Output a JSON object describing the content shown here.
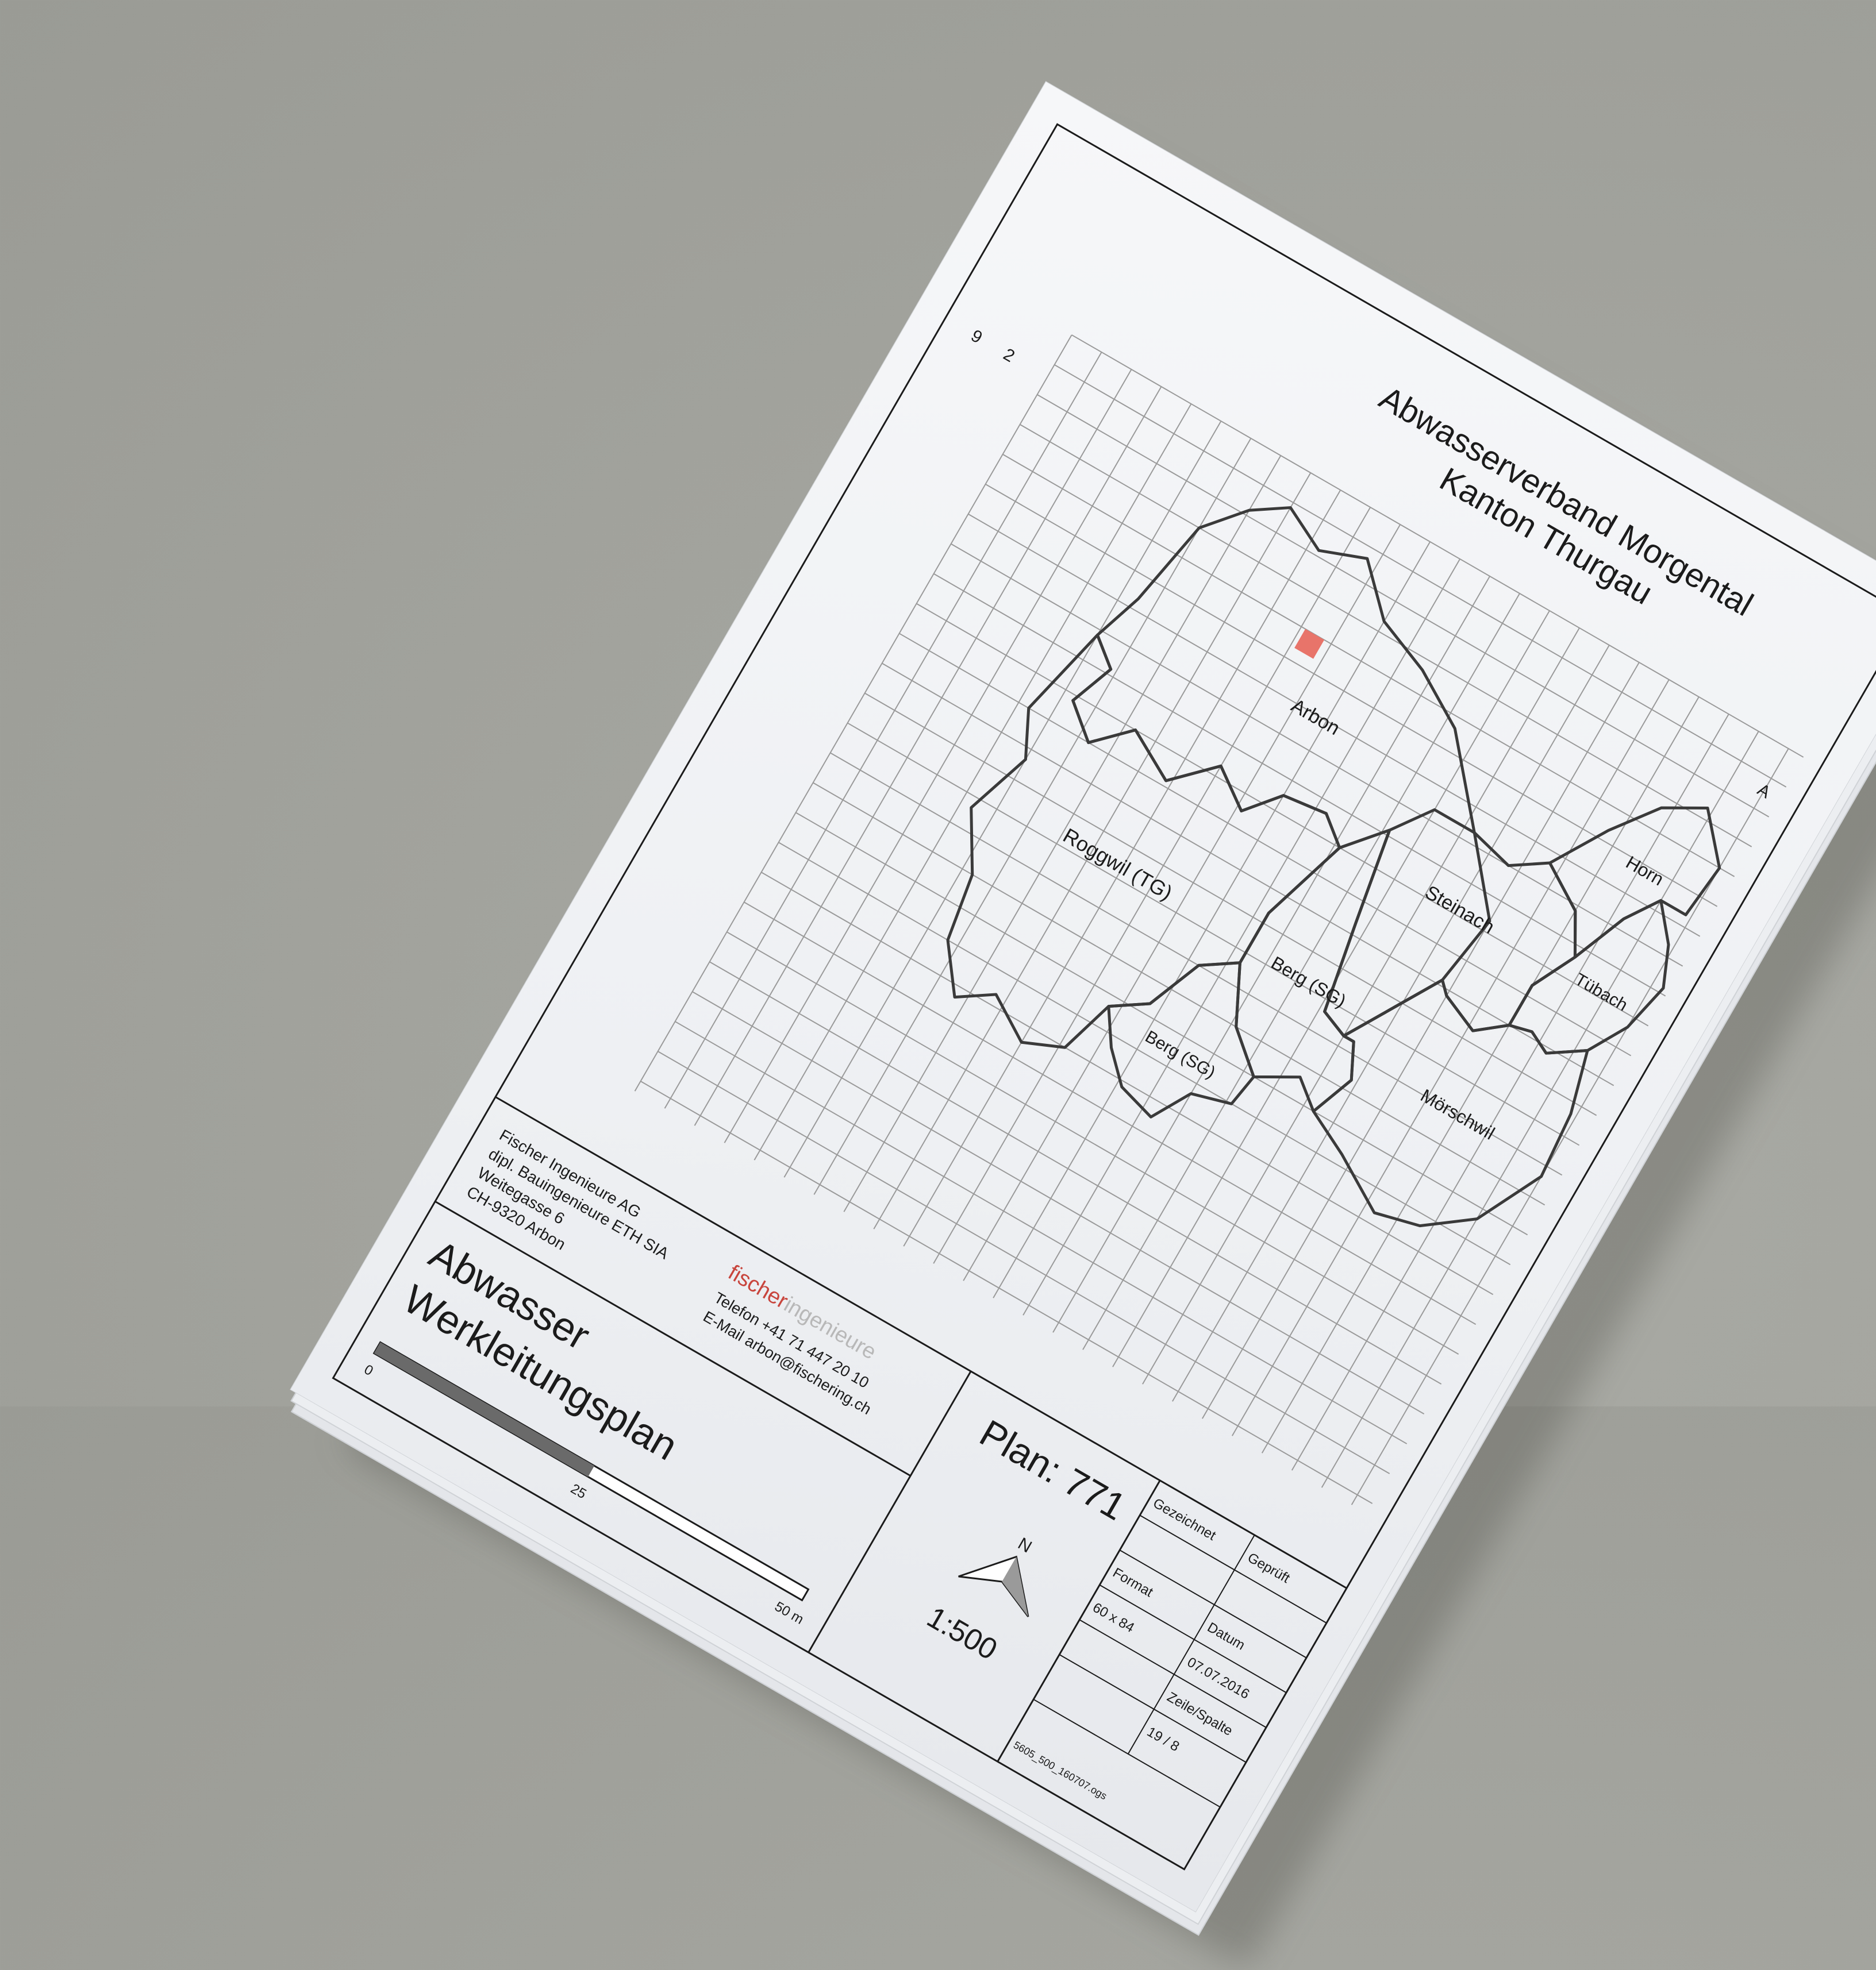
{
  "header": {
    "title": "Abwasserverband Morgental",
    "subtitle": "Kanton Thurgau"
  },
  "map": {
    "municipalities": [
      "Arbon",
      "Steinach",
      "Horn",
      "Tübach",
      "Roggwil (TG)",
      "Berg (SG)",
      "Berg (SG)",
      "Mörschwil"
    ],
    "highlight_color": "#e8746a",
    "edge_marks": [
      "9",
      "2",
      "A"
    ]
  },
  "plan": {
    "number_label": "Plan: 771",
    "scale": "1:500",
    "north_label": "N",
    "scalebar": {
      "zero": "0",
      "mid": "25",
      "end": "50 m",
      "max_m": 50
    }
  },
  "title_block": {
    "headers": [
      "Gezeichnet",
      "Geprüft",
      "Format",
      "Datum",
      "Zeile/Spalte"
    ],
    "format": "60 x 84",
    "date": "07.07.2016",
    "row_col": "19 / 8",
    "file_code": "5605_500_160707.ogs"
  },
  "company": {
    "name": "Fischer Ingenieure AG",
    "line2": "dipl. Bauingenieure ETH SIA",
    "street": "Weitegasse 6",
    "city": "CH-9320 Arbon",
    "logo_dark": "fischer",
    "logo_light": "ingenieure",
    "logo_color": "#c8453d",
    "phone": "Telefon  +41 71 447 20 10",
    "email": "E-Mail arbon@fischering.ch"
  },
  "document": {
    "line1": "Abwasser",
    "line2": "Werkleitungsplan"
  }
}
